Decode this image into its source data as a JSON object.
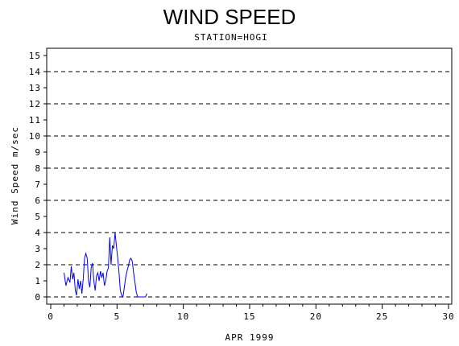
{
  "chart_data": {
    "type": "line",
    "title": "WIND SPEED",
    "subtitle": "STATION=HOGI",
    "xlabel": "APR 1999",
    "ylabel": "Wind Speed m/sec",
    "xlim": [
      0,
      30
    ],
    "ylim": [
      0,
      15.4
    ],
    "xticks": [
      0,
      5,
      10,
      15,
      20,
      25,
      30
    ],
    "yticks": [
      0,
      1,
      2,
      3,
      4,
      5,
      6,
      7,
      8,
      9,
      10,
      11,
      12,
      13,
      14,
      15
    ],
    "grid_dashed_y": [
      0,
      2,
      4,
      6,
      8,
      10,
      12,
      14
    ],
    "series": [
      {
        "color": "#0000ff",
        "x": [
          1.0,
          1.15,
          1.3,
          1.45,
          1.55,
          1.65,
          1.75,
          1.85,
          1.95,
          2.05,
          2.15,
          2.25,
          2.35,
          2.45,
          2.55,
          2.65,
          2.75,
          2.85,
          2.95,
          3.05,
          3.15,
          3.25,
          3.35,
          3.45,
          3.55,
          3.65,
          3.75,
          3.85,
          3.95,
          4.05,
          4.15,
          4.25,
          4.35,
          4.45,
          4.55,
          4.65,
          4.75,
          4.85,
          4.95,
          5.05,
          5.15,
          5.25,
          5.35,
          5.45,
          5.55,
          5.65,
          5.75,
          5.85,
          5.95,
          6.05,
          6.15,
          6.25,
          6.35,
          6.45,
          6.55,
          6.65,
          6.75,
          6.85,
          6.95,
          7.05,
          7.15,
          7.25
        ],
        "values": [
          1.5,
          0.7,
          1.2,
          0.9,
          1.9,
          1.1,
          1.5,
          0.4,
          0.1,
          1.1,
          0.5,
          1.0,
          0.2,
          1.1,
          2.4,
          2.7,
          2.4,
          1.0,
          0.6,
          1.8,
          2.1,
          1.0,
          0.4,
          1.3,
          1.5,
          1.0,
          1.6,
          1.2,
          1.5,
          0.7,
          1.0,
          1.6,
          1.8,
          3.7,
          2.0,
          3.2,
          3.0,
          4.0,
          3.2,
          2.4,
          1.5,
          0.4,
          0.1,
          0.0,
          0.6,
          1.2,
          1.6,
          1.9,
          2.3,
          2.4,
          2.2,
          1.5,
          0.9,
          0.3,
          0.0,
          0.0,
          0.0,
          0.0,
          0.0,
          0.0,
          0.0,
          0.2
        ]
      }
    ]
  }
}
